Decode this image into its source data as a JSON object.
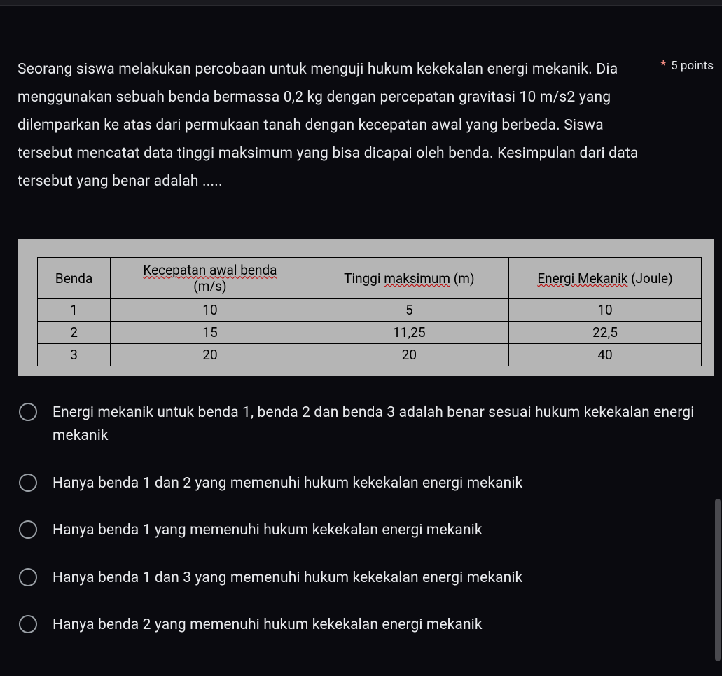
{
  "question": {
    "text": "Seorang siswa melakukan percobaan untuk menguji hukum kekekalan energi mekanik. Dia menggunakan sebuah benda bermassa 0,2 kg dengan percepatan gravitasi 10 m/s2 yang dilemparkan ke atas dari permukaan tanah dengan kecepatan awal yang berbeda. Siswa tersebut mencatat data tinggi maksimum yang bisa dicapai oleh benda. Kesimpulan dari data tersebut yang benar adalah .....",
    "required_mark": "*",
    "points_label": "5 points"
  },
  "table": {
    "type": "table",
    "background_color": "#b5b5b5",
    "border_color": "#000000",
    "text_color": "#000000",
    "underline_color": "#c00000",
    "fontsize": 19,
    "columns": [
      {
        "label": "Benda",
        "width_pct": 11,
        "underlined": false
      },
      {
        "label_underlined": "Kecepatan awal benda",
        "unit": "(m/s)",
        "width_pct": 30
      },
      {
        "label_prefix": "Tinggi ",
        "label_underlined": "maksimum",
        "label_suffix": " (m)",
        "width_pct": 30
      },
      {
        "label_underlined": "Energi Mekanik",
        "label_suffix": " (Joule)",
        "width_pct": 29
      }
    ],
    "rows": [
      [
        "1",
        "10",
        "5",
        "10"
      ],
      [
        "2",
        "15",
        "11,25",
        "22,5"
      ],
      [
        "3",
        "20",
        "20",
        "40"
      ]
    ]
  },
  "options": [
    {
      "text": "Energi mekanik untuk benda 1, benda 2 dan benda 3 adalah benar sesuai hukum kekekalan energi mekanik"
    },
    {
      "text": "Hanya benda 1 dan 2 yang memenuhi hukum kekekalan energi mekanik"
    },
    {
      "text": "Hanya benda 1 yang memenuhi hukum kekekalan energi mekanik"
    },
    {
      "text": "Hanya benda 1 dan 3 yang memenuhi hukum kekekalan energi mekanik"
    },
    {
      "text": "Hanya benda 2 yang memenuhi hukum kekekalan energi mekanik"
    }
  ],
  "colors": {
    "page_bg": "#0a0a0f",
    "text_primary": "#e8eaed",
    "required_asterisk": "#f28b82",
    "radio_border": "#9aa0a6",
    "scrollbar": "#4a4a4f"
  }
}
